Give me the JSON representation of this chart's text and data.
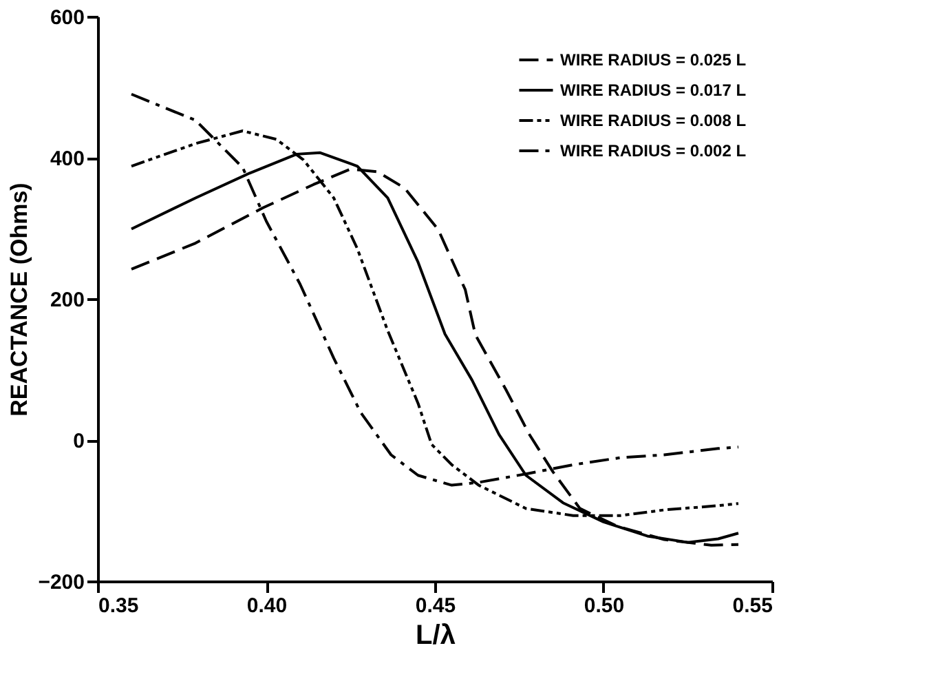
{
  "chart_data": {
    "type": "line",
    "xlabel": "L/λ",
    "ylabel": "REACTANCE (Ohms)",
    "xlim": [
      0.35,
      0.55
    ],
    "xticks": [
      0.35,
      {
        "value": 0.4,
        "label": "0.40"
      },
      0.45,
      {
        "value": 0.5,
        "label": "0.50"
      },
      0.55
    ],
    "ylim": [
      -200,
      600
    ],
    "yticks": [
      -200,
      0,
      200,
      400,
      600
    ],
    "grid": false,
    "legend": "top right",
    "marker": "none",
    "series": [
      {
        "name": "WIRE RADIUS = 0.025 L",
        "color": "#000000",
        "line_style": "dashed",
        "x": [
          0.36,
          0.379,
          0.399,
          0.414,
          0.425,
          0.433,
          0.441,
          0.451,
          0.459,
          0.462,
          0.471,
          0.478,
          0.485,
          0.493,
          0.504,
          0.518,
          0.532,
          0.54
        ],
        "values": [
          242,
          279,
          329,
          362,
          384,
          380,
          357,
          298,
          213,
          149,
          72,
          8,
          -45,
          -97,
          -122,
          -141,
          -149,
          -148
        ]
      },
      {
        "name": "WIRE RADIUS = 0.017 L",
        "color": "#000000",
        "line_style": "solid",
        "x": [
          0.36,
          0.379,
          0.395,
          0.409,
          0.416,
          0.427,
          0.436,
          0.445,
          0.453,
          0.461,
          0.469,
          0.477,
          0.488,
          0.5,
          0.513,
          0.525,
          0.534,
          0.54
        ],
        "values": [
          299,
          343,
          378,
          405,
          407,
          388,
          343,
          252,
          150,
          85,
          8,
          -50,
          -89,
          -116,
          -136,
          -145,
          -140,
          -132
        ]
      },
      {
        "name": "WIRE RADIUS = 0.008 L",
        "color": "#000000",
        "line_style": "dashdotdot",
        "x": [
          0.36,
          0.379,
          0.393,
          0.403,
          0.411,
          0.42,
          0.427,
          0.436,
          0.445,
          0.449,
          0.455,
          0.463,
          0.477,
          0.491,
          0.505,
          0.518,
          0.534,
          0.54
        ],
        "values": [
          388,
          420,
          438,
          426,
          397,
          343,
          271,
          155,
          52,
          -6,
          -35,
          -64,
          -97,
          -107,
          -107,
          -99,
          -93,
          -90
        ]
      },
      {
        "name": "WIRE RADIUS = 0.002 L",
        "color": "#000000",
        "line_style": "dashdot",
        "x": [
          0.36,
          0.379,
          0.393,
          0.4,
          0.41,
          0.42,
          0.428,
          0.437,
          0.445,
          0.455,
          0.463,
          0.477,
          0.491,
          0.505,
          0.518,
          0.534,
          0.54
        ],
        "values": [
          490,
          453,
          386,
          310,
          221,
          116,
          39,
          -21,
          -50,
          -64,
          -60,
          -48,
          -35,
          -25,
          -21,
          -12,
          -10
        ]
      }
    ]
  }
}
